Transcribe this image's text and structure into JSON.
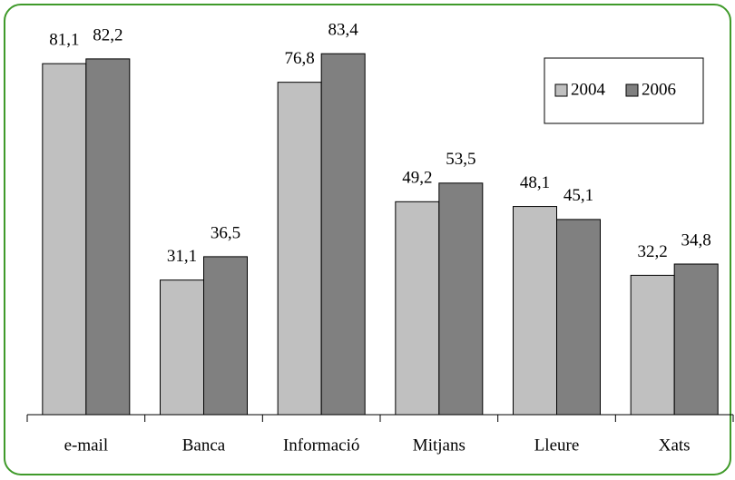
{
  "chart_data": {
    "type": "bar",
    "categories": [
      "e-mail",
      "Banca",
      "Informació",
      "Mitjans",
      "Lleure",
      "Xats"
    ],
    "series": [
      {
        "name": "2004",
        "color": "#c0c0c0",
        "values": [
          81.1,
          31.1,
          76.8,
          49.2,
          48.1,
          32.2
        ],
        "value_labels": [
          "81,1",
          "31,1",
          "76,8",
          "49,2",
          "48,1",
          "32,2"
        ]
      },
      {
        "name": "2006",
        "color": "#808080",
        "values": [
          82.2,
          36.5,
          83.4,
          53.5,
          45.1,
          34.8
        ],
        "value_labels": [
          "82,2",
          "36,5",
          "83,4",
          "53,5",
          "45,1",
          "34,8"
        ]
      }
    ],
    "legend": "top-right"
  }
}
